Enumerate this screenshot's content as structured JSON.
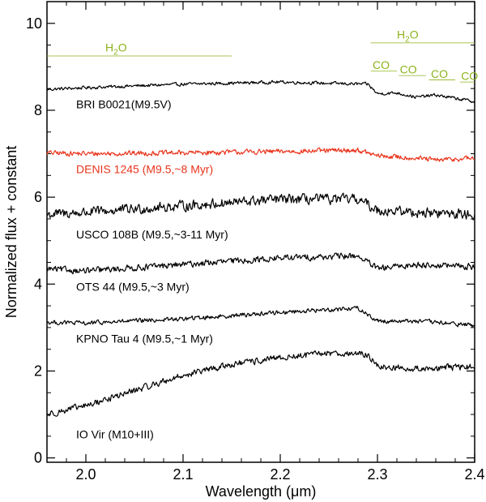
{
  "chart_data": {
    "type": "line",
    "xlabel": "Wavelength (μm)",
    "xlabel_prefix": "Wavelength (",
    "xlabel_unit": "μm",
    "xlabel_suffix": ")",
    "ylabel": "Normalized flux + constant",
    "xlim": [
      1.96,
      2.4
    ],
    "ylim": [
      -0.1,
      10.5
    ],
    "x_ticks": [
      2.0,
      2.1,
      2.2,
      2.3,
      2.4
    ],
    "x_tick_labels": [
      "2.0",
      "2.1",
      "2.2",
      "2.3",
      "2.4"
    ],
    "y_ticks": [
      0,
      2,
      4,
      6,
      8,
      10
    ],
    "y_tick_labels": [
      "0",
      "2",
      "4",
      "6",
      "8",
      "10"
    ],
    "colors": {
      "black": "#000000",
      "red": "#e8341c",
      "olive": "#8db31c"
    },
    "series": [
      {
        "name": "BRI B0021(M9.5V)",
        "color": "#000000",
        "noise": 0.025,
        "label_x": 2.0,
        "label_y": 8.05,
        "x": [
          1.96,
          2.0,
          2.1,
          2.2,
          2.25,
          2.29,
          2.3,
          2.32,
          2.34,
          2.36,
          2.4
        ],
        "y": [
          8.48,
          8.52,
          8.6,
          8.65,
          8.62,
          8.6,
          8.38,
          8.4,
          8.3,
          8.35,
          8.2
        ]
      },
      {
        "name": "DENIS 1245 (M9.5,~8 Myr)",
        "color": "#e8341c",
        "noise": 0.04,
        "label_x": 2.0,
        "label_y": 6.55,
        "x": [
          1.96,
          2.0,
          2.1,
          2.2,
          2.28,
          2.3,
          2.34,
          2.36,
          2.4
        ],
        "y": [
          7.02,
          7.0,
          7.02,
          7.05,
          7.08,
          6.95,
          6.9,
          6.85,
          6.9
        ]
      },
      {
        "name": "USCO 108B (M9.5,~3-11 Myr)",
        "color": "#000000",
        "noise": 0.08,
        "label_x": 2.0,
        "label_y": 5.05,
        "x": [
          1.96,
          2.0,
          2.1,
          2.2,
          2.28,
          2.3,
          2.34,
          2.4
        ],
        "y": [
          5.6,
          5.65,
          5.8,
          5.95,
          5.95,
          5.7,
          5.65,
          5.6
        ]
      },
      {
        "name": "OTS 44 (M9.5,~3 Myr)",
        "color": "#000000",
        "noise": 0.05,
        "label_x": 2.0,
        "label_y": 3.85,
        "x": [
          1.96,
          2.0,
          2.1,
          2.2,
          2.28,
          2.3,
          2.34,
          2.4
        ],
        "y": [
          4.35,
          4.3,
          4.45,
          4.6,
          4.65,
          4.35,
          4.45,
          4.4
        ]
      },
      {
        "name": "KPNO Tau 4 (M9.5,~1 Myr)",
        "color": "#000000",
        "noise": 0.035,
        "label_x": 2.0,
        "label_y": 2.65,
        "x": [
          1.96,
          2.0,
          2.1,
          2.2,
          2.28,
          2.3,
          2.34,
          2.4
        ],
        "y": [
          3.12,
          3.1,
          3.2,
          3.35,
          3.45,
          3.15,
          3.15,
          3.05
        ]
      },
      {
        "name": "IO Vir (M10+III)",
        "color": "#000000",
        "noise": 0.05,
        "label_x": 2.0,
        "label_y": 0.45,
        "x": [
          1.96,
          2.0,
          2.05,
          2.1,
          2.15,
          2.2,
          2.25,
          2.29,
          2.3,
          2.34,
          2.4
        ],
        "y": [
          1.0,
          1.2,
          1.55,
          1.9,
          2.15,
          2.3,
          2.42,
          2.38,
          2.1,
          2.05,
          2.1
        ]
      }
    ],
    "features": [
      {
        "label_base": "H",
        "label_sub": "2",
        "label_tail": "O",
        "x1": 1.96,
        "x2": 2.15,
        "y_line": 9.25,
        "label_x": 2.02,
        "label_y": 9.35
      },
      {
        "label_base": "H",
        "label_sub": "2",
        "label_tail": "O",
        "x1": 2.293,
        "x2": 2.4,
        "y_line": 9.55,
        "label_x": 2.32,
        "label_y": 9.65
      },
      {
        "label": "CO",
        "x1": 2.293,
        "x2": 2.32,
        "y_line": 8.9,
        "label_x": 2.295,
        "label_y": 8.95
      },
      {
        "label": "CO",
        "x1": 2.322,
        "x2": 2.35,
        "y_line": 8.8,
        "label_x": 2.323,
        "label_y": 8.85
      },
      {
        "label": "CO",
        "x1": 2.353,
        "x2": 2.38,
        "y_line": 8.7,
        "label_x": 2.355,
        "label_y": 8.75
      },
      {
        "label": "CO",
        "x1": 2.385,
        "x2": 2.4,
        "y_line": 8.65,
        "label_x": 2.386,
        "label_y": 8.7
      }
    ]
  }
}
